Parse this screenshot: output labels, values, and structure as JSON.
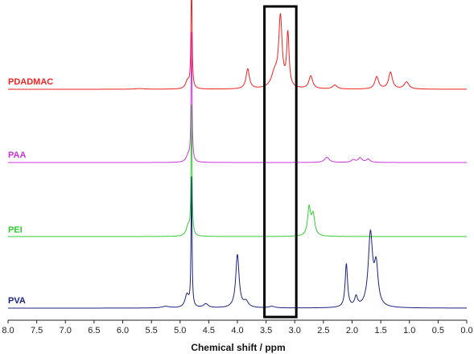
{
  "chart_data": {
    "type": "line",
    "xlabel": "Chemical shift / ppm",
    "ylabel": "",
    "xlim": [
      8.0,
      0.0
    ],
    "x_reversed": true,
    "x_ticks": [
      "8.0",
      "7.5",
      "7.0",
      "6.5",
      "6.0",
      "5.5",
      "5.0",
      "4.5",
      "4.0",
      "3.5",
      "3.0",
      "2.5",
      "2.0",
      "1.5",
      "1.0",
      "0.5",
      "0.0"
    ],
    "grid": false,
    "legend": "inline-left",
    "highlight_region_ppm": [
      3.5,
      3.0
    ],
    "series": [
      {
        "name": "PDADMAC",
        "color": "#ee2222",
        "baseline": 0.0,
        "peaks": [
          {
            "x": 5.7,
            "h": 0.02,
            "w": 0.1
          },
          {
            "x": 4.87,
            "h": 0.25,
            "w": 0.04
          },
          {
            "x": 4.8,
            "h": 4.0,
            "w": 0.01
          },
          {
            "x": 3.82,
            "h": 0.62,
            "w": 0.035
          },
          {
            "x": 3.25,
            "h": 2.15,
            "w": 0.035
          },
          {
            "x": 3.12,
            "h": 1.65,
            "w": 0.025
          },
          {
            "x": 3.35,
            "h": 0.45,
            "w": 0.07
          },
          {
            "x": 2.72,
            "h": 0.4,
            "w": 0.04
          },
          {
            "x": 2.3,
            "h": 0.12,
            "w": 0.05
          },
          {
            "x": 1.57,
            "h": 0.38,
            "w": 0.04
          },
          {
            "x": 1.33,
            "h": 0.52,
            "w": 0.04
          },
          {
            "x": 1.05,
            "h": 0.22,
            "w": 0.05
          }
        ]
      },
      {
        "name": "PAA",
        "color": "#cc33dd",
        "baseline": 0.0,
        "peaks": [
          {
            "x": 4.8,
            "h": 4.0,
            "w": 0.01
          },
          {
            "x": 4.86,
            "h": 0.2,
            "w": 0.04
          },
          {
            "x": 2.44,
            "h": 0.16,
            "w": 0.05
          },
          {
            "x": 1.98,
            "h": 0.08,
            "w": 0.04
          },
          {
            "x": 1.86,
            "h": 0.14,
            "w": 0.04
          },
          {
            "x": 1.72,
            "h": 0.1,
            "w": 0.04
          }
        ]
      },
      {
        "name": "PEI",
        "color": "#33cc33",
        "baseline": 0.0,
        "peaks": [
          {
            "x": 4.8,
            "h": 4.0,
            "w": 0.01
          },
          {
            "x": 4.86,
            "h": 0.3,
            "w": 0.04
          },
          {
            "x": 2.75,
            "h": 0.85,
            "w": 0.03
          },
          {
            "x": 2.68,
            "h": 0.65,
            "w": 0.035
          }
        ]
      },
      {
        "name": "PVA",
        "color": "#1a237e",
        "baseline": 0.0,
        "peaks": [
          {
            "x": 4.8,
            "h": 4.0,
            "w": 0.01
          },
          {
            "x": 4.88,
            "h": 0.4,
            "w": 0.04
          },
          {
            "x": 5.25,
            "h": 0.05,
            "w": 0.08
          },
          {
            "x": 4.55,
            "h": 0.12,
            "w": 0.05
          },
          {
            "x": 4.0,
            "h": 1.65,
            "w": 0.035
          },
          {
            "x": 3.85,
            "h": 0.18,
            "w": 0.05
          },
          {
            "x": 3.4,
            "h": 0.05,
            "w": 0.06
          },
          {
            "x": 2.1,
            "h": 1.35,
            "w": 0.025
          },
          {
            "x": 1.93,
            "h": 0.3,
            "w": 0.03
          },
          {
            "x": 1.68,
            "h": 2.25,
            "w": 0.045
          },
          {
            "x": 1.58,
            "h": 1.2,
            "w": 0.04
          }
        ]
      }
    ]
  }
}
